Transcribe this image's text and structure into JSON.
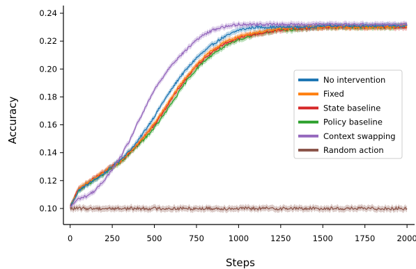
{
  "chart_data": {
    "type": "line",
    "xlabel": "Steps",
    "ylabel": "Accuracy",
    "xlim": [
      -40,
      2045
    ],
    "ylim": [
      0.0885,
      0.2455
    ],
    "xticks": [
      0,
      250,
      500,
      750,
      1000,
      1250,
      1500,
      1750,
      2000
    ],
    "xtick_labels": [
      "0",
      "250",
      "500",
      "750",
      "1000",
      "1250",
      "1500",
      "1750",
      "2000"
    ],
    "yticks": [
      0.1,
      0.12,
      0.14,
      0.16,
      0.18,
      0.2,
      0.22,
      0.24
    ],
    "ytick_labels": [
      "0.10",
      "0.12",
      "0.14",
      "0.16",
      "0.18",
      "0.20",
      "0.22",
      "0.24"
    ],
    "grid": false,
    "legend_position": "center-right",
    "x": [
      0,
      50,
      100,
      150,
      200,
      250,
      300,
      350,
      400,
      450,
      500,
      550,
      600,
      650,
      700,
      750,
      800,
      850,
      900,
      950,
      1000,
      1050,
      1100,
      1150,
      1200,
      1250,
      1300,
      1400,
      1500,
      1600,
      1700,
      1800,
      1900,
      2000
    ],
    "series": [
      {
        "name": "No intervention",
        "color": "#1f77b4",
        "values": [
          0.101,
          0.113,
          0.117,
          0.121,
          0.125,
          0.13,
          0.135,
          0.141,
          0.148,
          0.157,
          0.166,
          0.176,
          0.185,
          0.194,
          0.201,
          0.208,
          0.213,
          0.218,
          0.222,
          0.225,
          0.228,
          0.229,
          0.23,
          0.23,
          0.23,
          0.23,
          0.23,
          0.23,
          0.231,
          0.231,
          0.231,
          0.231,
          0.231,
          0.231
        ]
      },
      {
        "name": "Fixed",
        "color": "#ff7f0e",
        "values": [
          0.101,
          0.114,
          0.118,
          0.122,
          0.126,
          0.13,
          0.134,
          0.14,
          0.146,
          0.153,
          0.161,
          0.17,
          0.179,
          0.188,
          0.196,
          0.203,
          0.209,
          0.214,
          0.218,
          0.221,
          0.223,
          0.225,
          0.226,
          0.227,
          0.228,
          0.229,
          0.229,
          0.23,
          0.23,
          0.23,
          0.23,
          0.23,
          0.23,
          0.231
        ]
      },
      {
        "name": "State baseline",
        "color": "#d62728",
        "values": [
          0.101,
          0.114,
          0.118,
          0.122,
          0.126,
          0.13,
          0.134,
          0.14,
          0.146,
          0.153,
          0.16,
          0.169,
          0.178,
          0.187,
          0.195,
          0.202,
          0.208,
          0.213,
          0.217,
          0.22,
          0.222,
          0.224,
          0.225,
          0.226,
          0.227,
          0.228,
          0.229,
          0.229,
          0.23,
          0.23,
          0.23,
          0.23,
          0.23,
          0.23
        ]
      },
      {
        "name": "Policy baseline",
        "color": "#2ca02c",
        "values": [
          0.101,
          0.113,
          0.117,
          0.121,
          0.125,
          0.129,
          0.133,
          0.139,
          0.145,
          0.151,
          0.158,
          0.166,
          0.175,
          0.184,
          0.193,
          0.2,
          0.206,
          0.211,
          0.215,
          0.218,
          0.221,
          0.223,
          0.225,
          0.226,
          0.227,
          0.228,
          0.228,
          0.229,
          0.23,
          0.23,
          0.23,
          0.23,
          0.23,
          0.231
        ]
      },
      {
        "name": "Context swapping",
        "color": "#9467bd",
        "values": [
          0.101,
          0.107,
          0.109,
          0.113,
          0.12,
          0.128,
          0.137,
          0.148,
          0.161,
          0.173,
          0.185,
          0.194,
          0.203,
          0.209,
          0.215,
          0.221,
          0.225,
          0.228,
          0.23,
          0.231,
          0.232,
          0.232,
          0.232,
          0.232,
          0.232,
          0.232,
          0.232,
          0.232,
          0.232,
          0.232,
          0.232,
          0.232,
          0.232,
          0.232
        ]
      },
      {
        "name": "Random action",
        "color": "#8c564b",
        "values": [
          0.1,
          0.1,
          0.1,
          0.1,
          0.1,
          0.1,
          0.1,
          0.1,
          0.1,
          0.1,
          0.1,
          0.1,
          0.1,
          0.1,
          0.1,
          0.1,
          0.1,
          0.1,
          0.1,
          0.1,
          0.1,
          0.1,
          0.1,
          0.1,
          0.1,
          0.1,
          0.1,
          0.1,
          0.1,
          0.1,
          0.1,
          0.1,
          0.1,
          0.1
        ]
      }
    ]
  }
}
